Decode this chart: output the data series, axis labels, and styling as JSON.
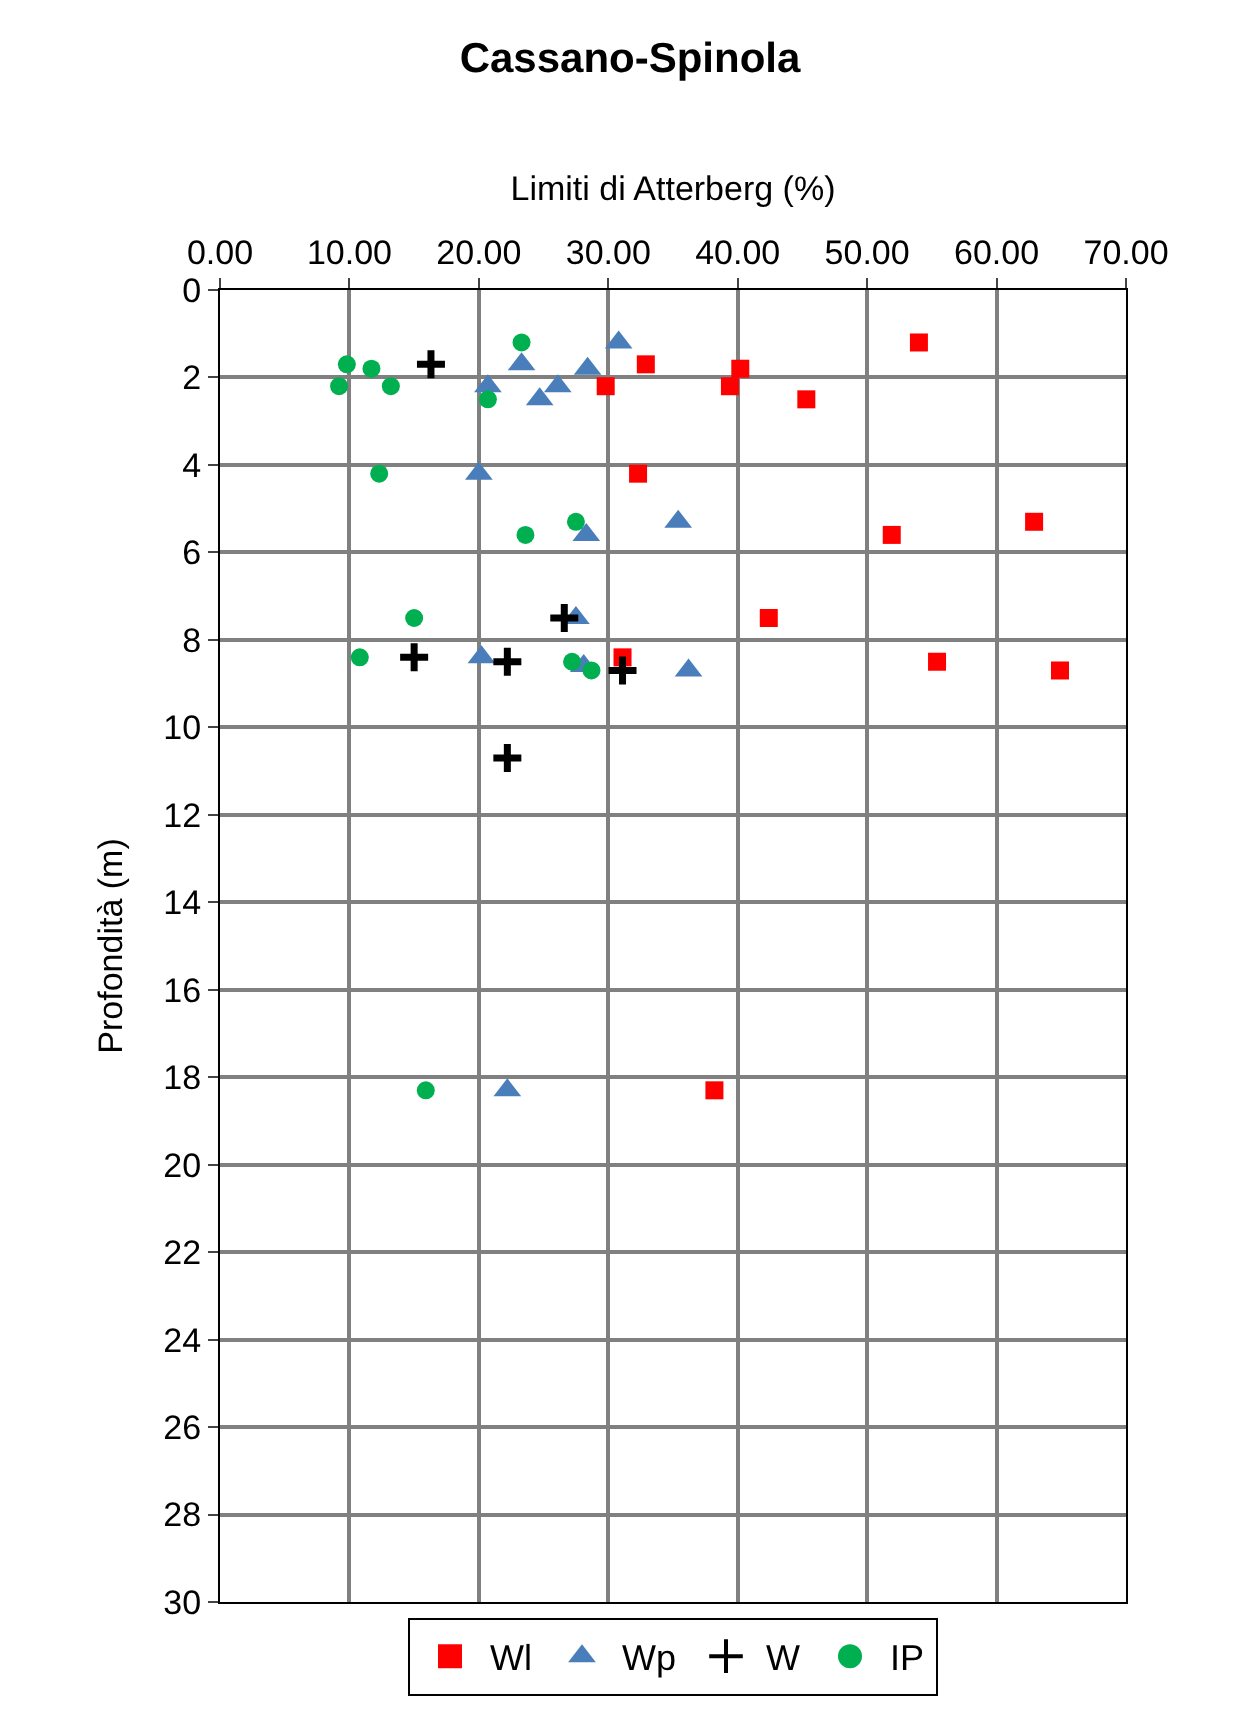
{
  "chart_data": {
    "type": "scatter",
    "title": "Cassano-Spinola",
    "xlabel": "Limiti di Atterberg (%)",
    "ylabel": "Profondità (m)",
    "xlim": [
      0,
      70
    ],
    "xticks": [
      {
        "value": 0,
        "label": "0.00"
      },
      {
        "value": 10,
        "label": "10.00"
      },
      {
        "value": 20,
        "label": "20.00"
      },
      {
        "value": 30,
        "label": "30.00"
      },
      {
        "value": 40,
        "label": "40.00"
      },
      {
        "value": 50,
        "label": "50.00"
      },
      {
        "value": 60,
        "label": "60.00"
      },
      {
        "value": 70,
        "label": "70.00"
      }
    ],
    "ylim": [
      30,
      0
    ],
    "yticks": [
      0,
      2,
      4,
      6,
      8,
      10,
      12,
      14,
      16,
      18,
      20,
      22,
      24,
      26,
      28,
      30
    ],
    "grid": true,
    "legend": "bottom",
    "series": [
      {
        "name": "Wl",
        "color": "#ff0000",
        "marker": "square",
        "x": [
          54.0,
          32.9,
          29.8,
          40.2,
          39.4,
          45.3,
          32.3,
          51.9,
          62.9,
          42.4,
          31.1,
          55.4,
          64.9,
          38.2
        ],
        "values": [
          1.2,
          1.7,
          2.2,
          1.8,
          2.2,
          2.5,
          4.2,
          5.6,
          5.3,
          7.5,
          8.4,
          8.5,
          8.7,
          18.3
        ]
      },
      {
        "name": "Wp",
        "color": "#4a7ebb",
        "marker": "triangle",
        "x": [
          30.8,
          23.3,
          28.4,
          20.7,
          26.1,
          24.7,
          20.0,
          35.4,
          28.3,
          27.5,
          20.2,
          28.1,
          36.2,
          22.2
        ],
        "values": [
          1.2,
          1.7,
          1.8,
          2.2,
          2.2,
          2.5,
          4.2,
          5.3,
          5.6,
          7.5,
          8.4,
          8.6,
          8.7,
          18.3
        ]
      },
      {
        "name": "W",
        "color": "#000000",
        "marker": "cross",
        "x": [
          16.3,
          26.6,
          15.0,
          22.2,
          31.1,
          22.2
        ],
        "values": [
          1.7,
          7.5,
          8.4,
          8.5,
          8.7,
          10.7
        ]
      },
      {
        "name": "IP",
        "color": "#00b050",
        "marker": "circle",
        "x": [
          23.3,
          9.8,
          11.7,
          9.2,
          13.2,
          20.7,
          12.3,
          23.6,
          27.5,
          15.0,
          10.8,
          27.2,
          28.7,
          15.9
        ],
        "values": [
          1.2,
          1.7,
          1.8,
          2.2,
          2.2,
          2.5,
          4.2,
          5.6,
          5.3,
          7.5,
          8.4,
          8.5,
          8.7,
          18.3
        ]
      }
    ]
  }
}
